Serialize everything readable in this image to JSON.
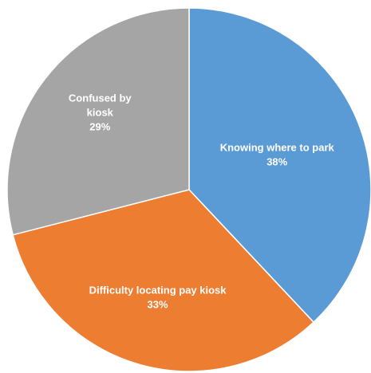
{
  "chart_data": {
    "type": "pie",
    "title": "",
    "slices": [
      {
        "label_lines": [
          "Knowing where to park"
        ],
        "value": 38,
        "value_label": "38%",
        "color": "#5B9BD5"
      },
      {
        "label_lines": [
          "Difficulty locating pay kiosk"
        ],
        "value": 33,
        "value_label": "33%",
        "color": "#ED7D31"
      },
      {
        "label_lines": [
          "Confused by",
          "kiosk"
        ],
        "value": 29,
        "value_label": "29%",
        "color": "#A5A5A5"
      }
    ],
    "start_angle": "12 o'clock",
    "direction": "clockwise",
    "legend": "none",
    "data_labels": "inside"
  }
}
